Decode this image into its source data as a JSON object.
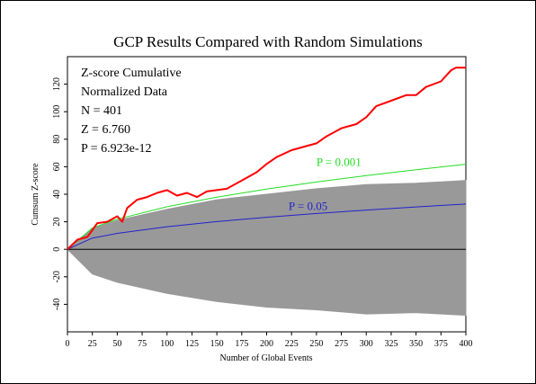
{
  "chart_data": {
    "type": "line",
    "title": "GCP Results Compared with Random Simulations",
    "xlabel": "Number of Global Events",
    "ylabel": "Cumsum Z-score",
    "xlim": [
      0,
      400
    ],
    "ylim": [
      -60,
      140
    ],
    "x_ticks": [
      "0",
      "25",
      "50",
      "75",
      "100",
      "125",
      "150",
      "175",
      "200",
      "225",
      "250",
      "275",
      "300",
      "325",
      "350",
      "375",
      "400"
    ],
    "y_ticks": [
      "-40",
      "-20",
      "0",
      "20",
      "40",
      "60",
      "80",
      "100",
      "120"
    ],
    "grid": false,
    "info_lines": [
      "Z-score Cumulative",
      "Normalized Data",
      "N = 401",
      "Z = 6.760",
      "P = 6.923e-12"
    ],
    "annotations": [
      {
        "text": "P = 0.001",
        "x": 250,
        "y": 62,
        "color": "#22dd22"
      },
      {
        "text": "P = 0.05",
        "x": 222,
        "y": 30,
        "color": "#2222cc"
      }
    ],
    "simulation_envelope": {
      "color": "#999999",
      "x": [
        0,
        25,
        50,
        100,
        150,
        200,
        250,
        300,
        350,
        400
      ],
      "upper": [
        0,
        15,
        21,
        29,
        36,
        40,
        44,
        47,
        48,
        50
      ],
      "lower": [
        0,
        -18,
        -24,
        -32,
        -38,
        -42,
        -44,
        -47,
        -46,
        -48
      ]
    },
    "series": [
      {
        "name": "",
        "color": "#ff0000",
        "x": [
          0,
          10,
          20,
          25,
          30,
          40,
          50,
          55,
          60,
          70,
          80,
          90,
          100,
          110,
          120,
          130,
          140,
          150,
          160,
          175,
          190,
          200,
          210,
          225,
          240,
          250,
          260,
          275,
          290,
          300,
          310,
          325,
          340,
          350,
          360,
          375,
          385,
          390,
          400
        ],
        "y": [
          0,
          7,
          9,
          14,
          19,
          20,
          24,
          20,
          30,
          36,
          38,
          41,
          43,
          39,
          41,
          38,
          42,
          43,
          44,
          50,
          56,
          62,
          67,
          72,
          75,
          77,
          82,
          88,
          91,
          96,
          104,
          108,
          112,
          112,
          118,
          122,
          130,
          132,
          132
        ]
      },
      {
        "name": "P = 0.001",
        "color": "#22dd22",
        "x": [
          0,
          25,
          50,
          100,
          150,
          200,
          250,
          300,
          350,
          400
        ],
        "y": [
          0,
          15.5,
          21.9,
          30.9,
          37.9,
          43.7,
          48.9,
          53.5,
          57.8,
          61.8
        ]
      },
      {
        "name": "P = 0.05",
        "color": "#2222cc",
        "x": [
          0,
          25,
          50,
          100,
          150,
          200,
          250,
          300,
          350,
          400
        ],
        "y": [
          0,
          8.2,
          11.6,
          16.4,
          20.1,
          23.3,
          26.0,
          28.5,
          30.8,
          32.9
        ]
      }
    ]
  }
}
